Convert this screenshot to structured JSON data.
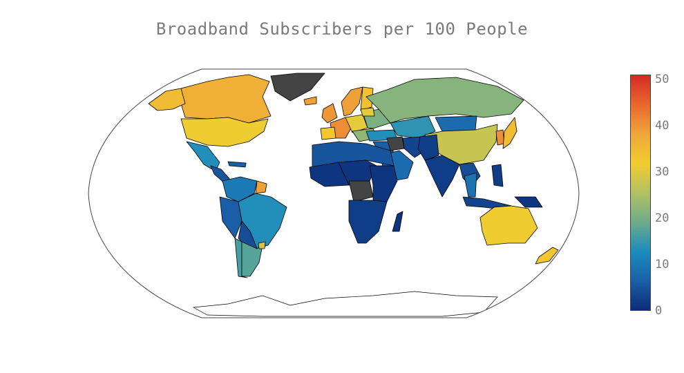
{
  "title": "Broadband Subscribers per 100 People",
  "colorbar": {
    "min": 0,
    "max": 50,
    "ticks": [
      {
        "value": 50,
        "label": "50"
      },
      {
        "value": 40,
        "label": "40"
      },
      {
        "value": 30,
        "label": "30"
      },
      {
        "value": 20,
        "label": "20"
      },
      {
        "value": 10,
        "label": "10"
      },
      {
        "value": 0,
        "label": "0"
      }
    ],
    "colorscale": [
      "#0c2d78",
      "#1a60a8",
      "#1c8cbe",
      "#6dac8a",
      "#b3c163",
      "#f2cc2e",
      "#f0a63a",
      "#e9672c",
      "#d42a24"
    ]
  },
  "colors": {
    "no_data": "#444444",
    "land_outline": "#000000",
    "frame": "#444444",
    "antarctica": "#ffffff"
  },
  "map_data": {
    "projection": "robinson",
    "variable": "broadband subscribers per 100 people",
    "regions": [
      {
        "id": "canada",
        "value": 36
      },
      {
        "id": "alaska",
        "value": 34
      },
      {
        "id": "usa",
        "value": 31
      },
      {
        "id": "mexico",
        "value": 13
      },
      {
        "id": "central_america",
        "value": 5
      },
      {
        "id": "caribbean",
        "value": 6
      },
      {
        "id": "greenland",
        "value": null
      },
      {
        "id": "colombia_venezuela",
        "value": 10
      },
      {
        "id": "peru_ecuador",
        "value": 6
      },
      {
        "id": "brazil",
        "value": 13
      },
      {
        "id": "bolivia_paraguay",
        "value": 4
      },
      {
        "id": "chile",
        "value": 16
      },
      {
        "id": "argentina",
        "value": 17
      },
      {
        "id": "uruguay",
        "value": 28
      },
      {
        "id": "guianas",
        "value": 38
      },
      {
        "id": "iceland",
        "value": 38
      },
      {
        "id": "uk_ireland",
        "value": 39
      },
      {
        "id": "scandinavia",
        "value": 38
      },
      {
        "id": "finland",
        "value": 33
      },
      {
        "id": "western_europe",
        "value": 40
      },
      {
        "id": "iberia",
        "value": 32
      },
      {
        "id": "central_europe",
        "value": 30
      },
      {
        "id": "eastern_europe",
        "value": 20
      },
      {
        "id": "balkans",
        "value": 22
      },
      {
        "id": "baltics",
        "value": 30
      },
      {
        "id": "turkey",
        "value": 13
      },
      {
        "id": "russia",
        "value": 21
      },
      {
        "id": "kazakhstan_central_asia",
        "value": 14
      },
      {
        "id": "mongolia",
        "value": 8
      },
      {
        "id": "china",
        "value": 27
      },
      {
        "id": "korea",
        "value": 40
      },
      {
        "id": "japan",
        "value": 34
      },
      {
        "id": "middle_east",
        "value": 6
      },
      {
        "id": "arabia",
        "value": 8
      },
      {
        "id": "iran",
        "value": 3
      },
      {
        "id": "syria_iraq",
        "value": null
      },
      {
        "id": "afghanistan_pakistan",
        "value": 2
      },
      {
        "id": "india",
        "value": 2
      },
      {
        "id": "southeast_asia",
        "value": 4
      },
      {
        "id": "thailand_malaysia",
        "value": 9
      },
      {
        "id": "indonesia",
        "value": 3
      },
      {
        "id": "philippines",
        "value": 2
      },
      {
        "id": "papua",
        "value": 1
      },
      {
        "id": "north_africa",
        "value": 5
      },
      {
        "id": "west_africa",
        "value": 1
      },
      {
        "id": "central_africa",
        "value": 1
      },
      {
        "id": "drc",
        "value": null
      },
      {
        "id": "east_africa",
        "value": 1
      },
      {
        "id": "southern_africa",
        "value": 2
      },
      {
        "id": "madagascar",
        "value": 1
      },
      {
        "id": "australia",
        "value": 31
      },
      {
        "id": "new_zealand",
        "value": 32
      }
    ]
  }
}
